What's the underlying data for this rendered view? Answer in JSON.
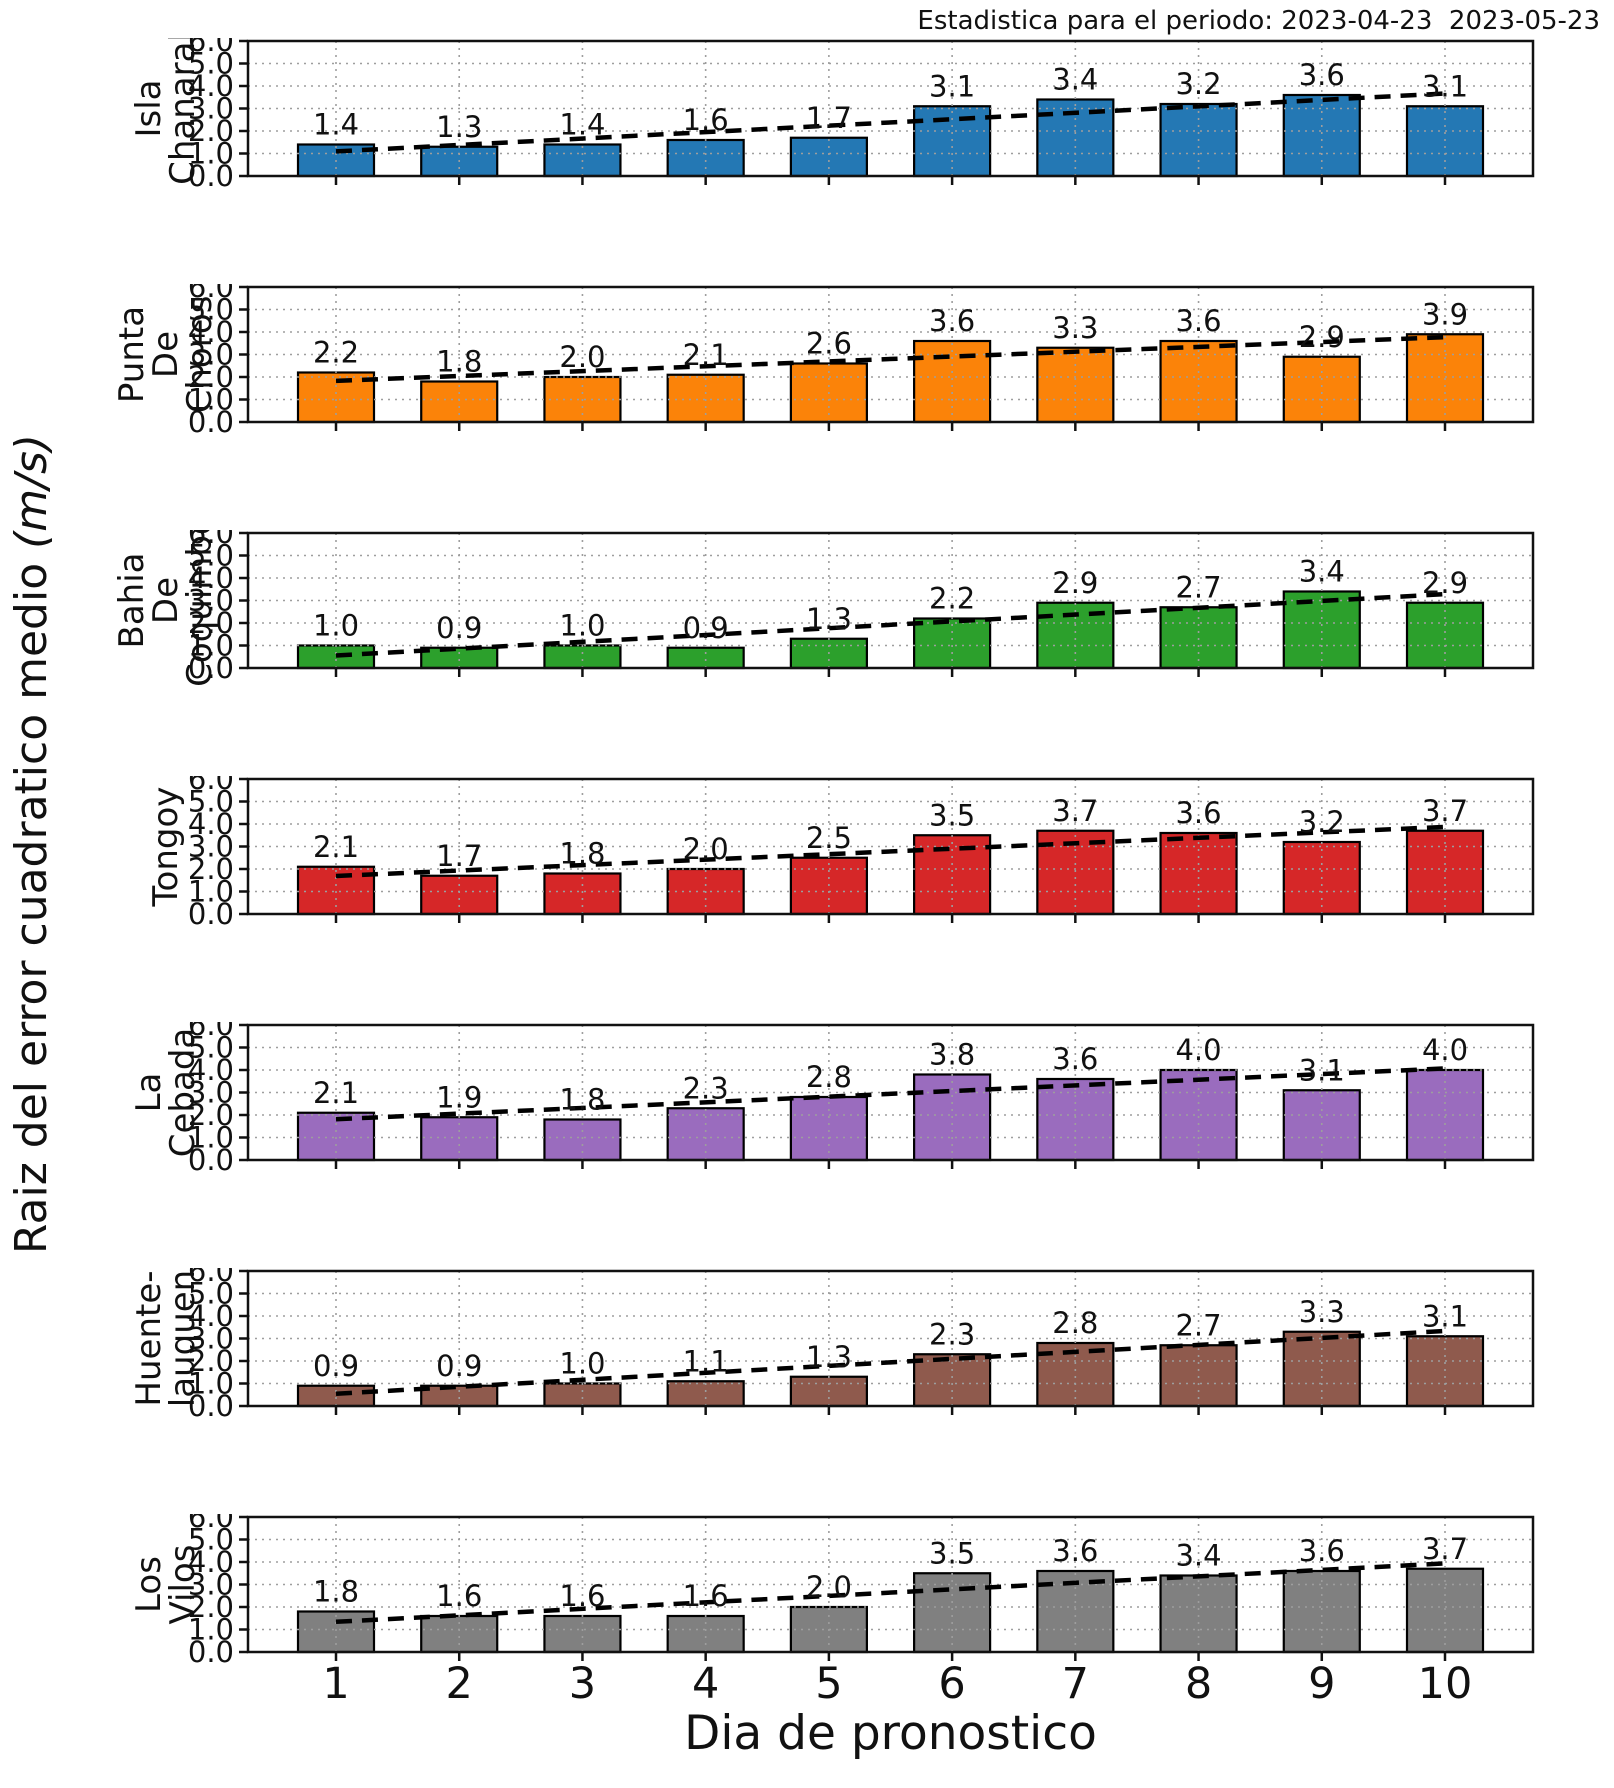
{
  "title": "Estadistica para el periodo: 2023-04-23  2023-05-23",
  "ylabel": "Raiz del error cuadratico medio",
  "ylabel_units": "(m/s)",
  "xlabel": "Dia de pronostico",
  "chart_data": {
    "type": "bar",
    "categories": [
      "1",
      "2",
      "3",
      "4",
      "5",
      "6",
      "7",
      "8",
      "9",
      "10"
    ],
    "x": [
      1,
      2,
      3,
      4,
      5,
      6,
      7,
      8,
      9,
      10
    ],
    "ylim": [
      0,
      6
    ],
    "ytick_labels": [
      "0.0",
      "1.0",
      "2.0",
      "3.0",
      "4.0",
      "5.0",
      "6.0"
    ],
    "grid": "dotted gray, horizontal and vertical",
    "trendline": "black dashed linear least-squares fit per panel",
    "value_labels": "each bar labeled with its value to 1 decimal",
    "panels": [
      {
        "name": "Isla Chanaral",
        "label_lines": [
          "Isla",
          "Chanaral"
        ],
        "color": "#2478b4",
        "values": [
          1.4,
          1.3,
          1.4,
          1.6,
          1.7,
          3.1,
          3.4,
          3.2,
          3.6,
          3.1
        ]
      },
      {
        "name": "Punta De Choros",
        "label_lines": [
          "Punta",
          "De",
          "Choros"
        ],
        "color": "#fb8309",
        "values": [
          2.2,
          1.8,
          2.0,
          2.1,
          2.6,
          3.6,
          3.3,
          3.6,
          2.9,
          3.9
        ]
      },
      {
        "name": "Bahia De Coquimbo",
        "label_lines": [
          "Bahia",
          "De",
          "Coquimbo"
        ],
        "color": "#2ca02c",
        "values": [
          1.0,
          0.9,
          1.0,
          0.9,
          1.3,
          2.2,
          2.9,
          2.7,
          3.4,
          2.9
        ]
      },
      {
        "name": "Tongoy",
        "label_lines": [
          "Tongoy"
        ],
        "color": "#d62728",
        "values": [
          2.1,
          1.7,
          1.8,
          2.0,
          2.5,
          3.5,
          3.7,
          3.6,
          3.2,
          3.7
        ]
      },
      {
        "name": "La Cebada",
        "label_lines": [
          "La",
          "Cebada"
        ],
        "color": "#9a6cbe",
        "values": [
          2.1,
          1.9,
          1.8,
          2.3,
          2.8,
          3.8,
          3.6,
          4.0,
          3.1,
          4.0
        ]
      },
      {
        "name": "Huente-lauquen",
        "label_lines": [
          "Huente-",
          "lauquen"
        ],
        "color": "#8f5a4d",
        "values": [
          0.9,
          0.9,
          1.0,
          1.1,
          1.3,
          2.3,
          2.8,
          2.7,
          3.3,
          3.1
        ]
      },
      {
        "name": "Los Vilos",
        "label_lines": [
          "Los",
          "Vilos"
        ],
        "color": "#808080",
        "values": [
          1.8,
          1.6,
          1.6,
          1.6,
          2.0,
          3.5,
          3.6,
          3.4,
          3.6,
          3.7
        ]
      }
    ]
  }
}
